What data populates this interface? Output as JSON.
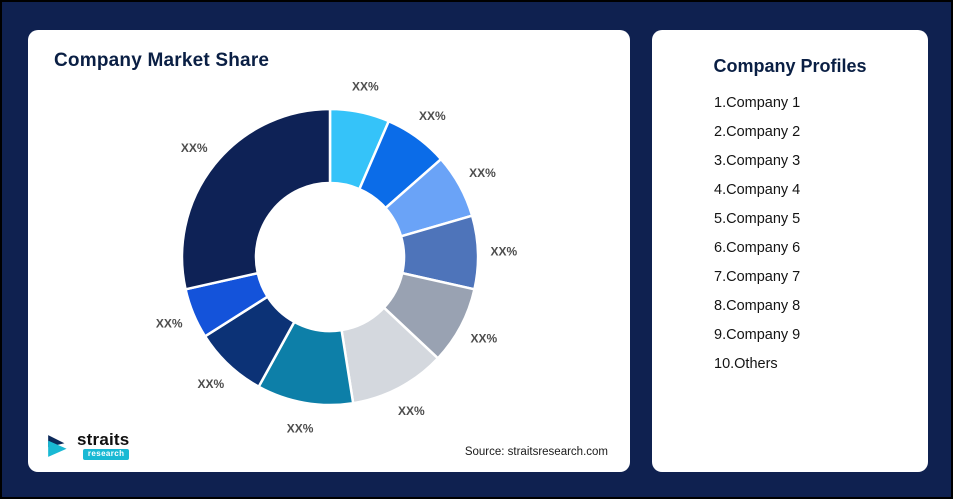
{
  "market_share_card": {
    "title": "Company Market Share",
    "source": "Source: straitsresearch.com",
    "logo": {
      "name": "straits",
      "tagline": "research"
    }
  },
  "profiles_card": {
    "title": "Company Profiles",
    "items": [
      "1.Company 1",
      "2.Company 2",
      "3.Company 3",
      "4.Company 4",
      "5.Company 5",
      "6.Company 6",
      "7.Company 7",
      "8.Company 8",
      "9.Company 9",
      "10.Others"
    ]
  },
  "chart_data": {
    "type": "pie",
    "subtype": "donut",
    "title": "Company Market Share",
    "categories": [
      "Company 1",
      "Company 2",
      "Company 3",
      "Company 4",
      "Company 5",
      "Company 6",
      "Company 7",
      "Company 8",
      "Company 9",
      "Others"
    ],
    "values": [
      6.5,
      7,
      7,
      8,
      8.5,
      10.5,
      10.5,
      8,
      5.5,
      28.5
    ],
    "values_note": "all slice data labels display the placeholder XX%; numeric shares estimated from arc angles",
    "slice_labels": [
      "XX%",
      "XX%",
      "XX%",
      "XX%",
      "XX%",
      "XX%",
      "XX%",
      "XX%",
      "XX%",
      "XX%"
    ],
    "colors": [
      "#35c3f9",
      "#0b6ce8",
      "#6aa3f7",
      "#4e74ba",
      "#99a2b2",
      "#d4d8de",
      "#0d7fa8",
      "#0c3276",
      "#1453da",
      "#0e2256"
    ],
    "legend": "none",
    "start_angle_deg": 0,
    "source": "Source: straitsresearch.com"
  }
}
